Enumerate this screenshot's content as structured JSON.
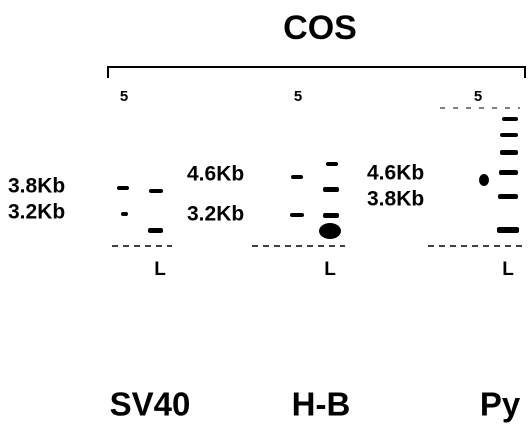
{
  "header": {
    "title": "COS"
  },
  "panels": [
    {
      "lanes": [
        "5",
        "L"
      ],
      "markers": [
        "3.8Kb",
        "3.2Kb"
      ],
      "label": "SV40"
    },
    {
      "lanes": [
        "5",
        "L"
      ],
      "markers": [
        "4.6Kb",
        "3.2Kb"
      ],
      "label": "H-B"
    },
    {
      "lanes": [
        "5",
        "L"
      ],
      "markers": [
        "4.6Kb",
        "3.8Kb"
      ],
      "label": "Py"
    }
  ]
}
